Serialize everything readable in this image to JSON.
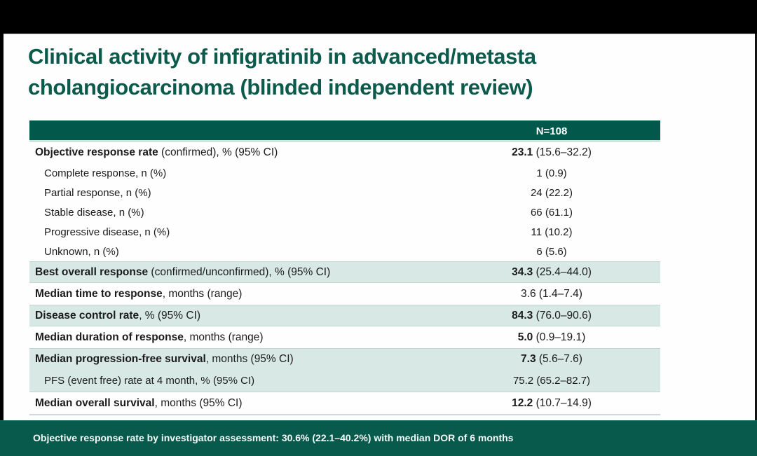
{
  "title": {
    "line1": "Clinical activity of infigratinib in advanced/metasta",
    "line2": "cholangiocarcinoma (blinded independent review)"
  },
  "table": {
    "header_value": "N=108",
    "rows": [
      {
        "label_bold": "Objective response rate",
        "label_rest": " (confirmed), % (95% CI)",
        "value_bold": "23.1",
        "value_rest": " (15.6–32.2)"
      },
      {
        "label_bold": "",
        "label_rest": "Complete response, n (%)",
        "value_bold": "",
        "value_rest": "1 (0.9)"
      },
      {
        "label_bold": "",
        "label_rest": "Partial response, n (%)",
        "value_bold": "",
        "value_rest": "24 (22.2)"
      },
      {
        "label_bold": "",
        "label_rest": "Stable disease, n (%)",
        "value_bold": "",
        "value_rest": "66 (61.1)"
      },
      {
        "label_bold": "",
        "label_rest": "Progressive disease, n (%)",
        "value_bold": "",
        "value_rest": "11 (10.2)"
      },
      {
        "label_bold": "",
        "label_rest": "Unknown, n (%)",
        "value_bold": "",
        "value_rest": "6 (5.6)"
      },
      {
        "label_bold": "Best overall response",
        "label_rest": " (confirmed/unconfirmed), % (95% CI)",
        "value_bold": "34.3",
        "value_rest": " (25.4–44.0)"
      },
      {
        "label_bold": "Median time to response",
        "label_rest": ", months (range)",
        "value_bold": "",
        "value_rest": "3.6 (1.4–7.4)"
      },
      {
        "label_bold": "Disease control rate",
        "label_rest": ", % (95% CI)",
        "value_bold": "84.3",
        "value_rest": " (76.0–90.6)"
      },
      {
        "label_bold": "Median duration of response",
        "label_rest": ", months (range)",
        "value_bold": "5.0",
        "value_rest": " (0.9–19.1)"
      },
      {
        "label_bold": "Median progression-free survival",
        "label_rest": ", months (95% CI)",
        "value_bold": "7.3",
        "value_rest": " (5.6–7.6)"
      },
      {
        "label_bold": "",
        "label_rest": "PFS (event free) rate at 4 month, % (95% CI)",
        "value_bold": "",
        "value_rest": "75.2 (65.2–82.7)"
      },
      {
        "label_bold": "Median overall survival",
        "label_rest": ", months (95% CI)",
        "value_bold": "12.2",
        "value_rest": " (10.7–14.9)"
      }
    ]
  },
  "footer": {
    "note": "Objective response rate by investigator assessment: 30.6% (22.1–40.2%) with median DOR of 6 months"
  },
  "colors": {
    "header_teal": "#02594B",
    "footer_teal": "#075A4C",
    "row_highlight": "#D8E8E4",
    "title_teal": "#0B5A4B",
    "header_underline": "#CDE7DF"
  }
}
